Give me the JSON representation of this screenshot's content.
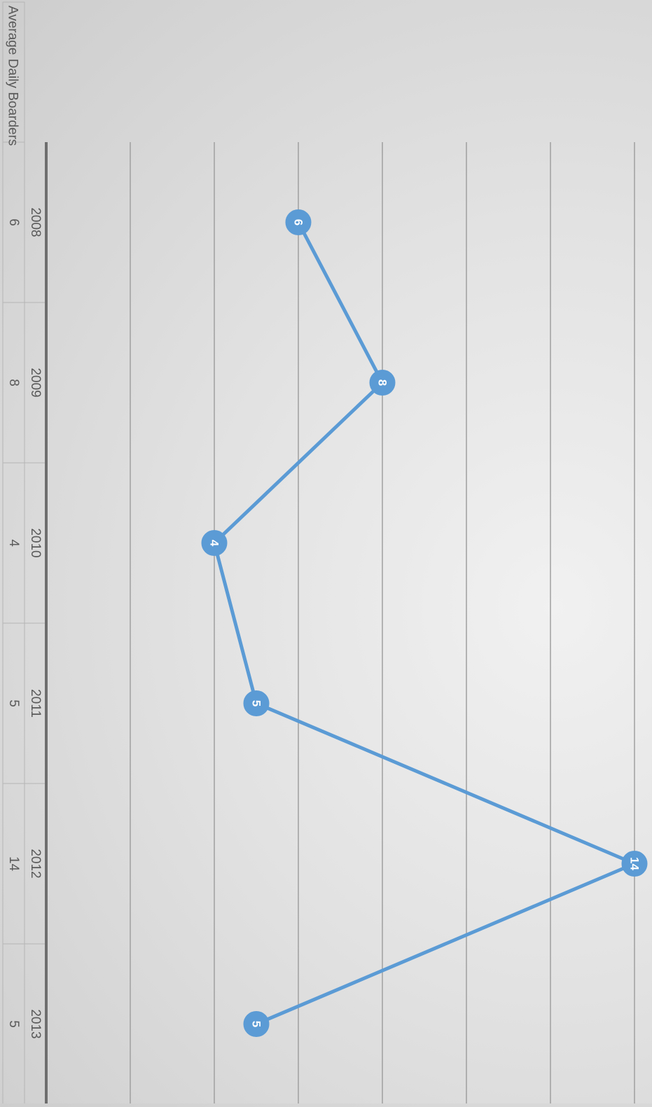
{
  "chart_data": {
    "type": "line",
    "orientation": "rotated-90-clockwise",
    "series": [
      {
        "name": "Average Daily Boarders",
        "values": [
          6,
          8,
          4,
          5,
          14,
          5
        ],
        "color": "#5b9bd5"
      }
    ],
    "categories": [
      "2008",
      "2009",
      "2010",
      "2011",
      "2012",
      "2013"
    ],
    "data_labels": [
      "6",
      "8",
      "4",
      "5",
      "14",
      "5"
    ],
    "ylim": [
      -4,
      14
    ],
    "gridlines": true,
    "data_table": true,
    "title": "",
    "xlabel": "",
    "ylabel": ""
  }
}
